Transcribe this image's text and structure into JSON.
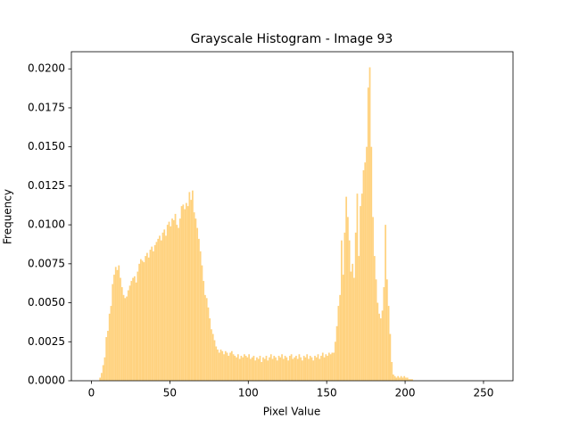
{
  "chart_data": {
    "type": "histogram",
    "title": "Grayscale Histogram - Image 93",
    "x_label": "Pixel Value",
    "y_label": "Frequency",
    "color": "#ffd27f",
    "bins": [
      0,
      1,
      2,
      3,
      4,
      5,
      6,
      7,
      8,
      9,
      10,
      11,
      12,
      13,
      14,
      15,
      16,
      17,
      18,
      19,
      20,
      21,
      22,
      23,
      24,
      25,
      26,
      27,
      28,
      29,
      30,
      31,
      32,
      33,
      34,
      35,
      36,
      37,
      38,
      39,
      40,
      41,
      42,
      43,
      44,
      45,
      46,
      47,
      48,
      49,
      50,
      51,
      52,
      53,
      54,
      55,
      56,
      57,
      58,
      59,
      60,
      61,
      62,
      63,
      64,
      65,
      66,
      67,
      68,
      69,
      70,
      71,
      72,
      73,
      74,
      75,
      76,
      77,
      78,
      79,
      80,
      81,
      82,
      83,
      84,
      85,
      86,
      87,
      88,
      89,
      90,
      91,
      92,
      93,
      94,
      95,
      96,
      97,
      98,
      99,
      100,
      101,
      102,
      103,
      104,
      105,
      106,
      107,
      108,
      109,
      110,
      111,
      112,
      113,
      114,
      115,
      116,
      117,
      118,
      119,
      120,
      121,
      122,
      123,
      124,
      125,
      126,
      127,
      128,
      129,
      130,
      131,
      132,
      133,
      134,
      135,
      136,
      137,
      138,
      139,
      140,
      141,
      142,
      143,
      144,
      145,
      146,
      147,
      148,
      149,
      150,
      151,
      152,
      153,
      154,
      155,
      156,
      157,
      158,
      159,
      160,
      161,
      162,
      163,
      164,
      165,
      166,
      167,
      168,
      169,
      170,
      171,
      172,
      173,
      174,
      175,
      176,
      177,
      178,
      179,
      180,
      181,
      182,
      183,
      184,
      185,
      186,
      187,
      188,
      189,
      190,
      191,
      192,
      193,
      194,
      195,
      196,
      197,
      198,
      199,
      200,
      201,
      202,
      203,
      204,
      205,
      206,
      207,
      208,
      209,
      210,
      211,
      212,
      213,
      214,
      215,
      216,
      217,
      218,
      219,
      220,
      221,
      222,
      223,
      224,
      225,
      226,
      227,
      228,
      229,
      230,
      231,
      232,
      233,
      234,
      235,
      236,
      237,
      238,
      239,
      240,
      241,
      242,
      243,
      244,
      245,
      246,
      247,
      248,
      249,
      250,
      251,
      252,
      253,
      254,
      255,
      256
    ],
    "values": [
      0,
      0,
      0,
      0,
      0,
      0.0002,
      0.0005,
      0.001,
      0.0015,
      0.0028,
      0.0032,
      0.0043,
      0.0048,
      0.0062,
      0.0068,
      0.0073,
      0.0071,
      0.0074,
      0.0066,
      0.006,
      0.0055,
      0.0053,
      0.0054,
      0.0058,
      0.0061,
      0.0064,
      0.0066,
      0.0067,
      0.0063,
      0.007,
      0.0075,
      0.0078,
      0.0077,
      0.0076,
      0.008,
      0.0082,
      0.0079,
      0.0084,
      0.0086,
      0.0083,
      0.0087,
      0.0089,
      0.0091,
      0.0093,
      0.009,
      0.0095,
      0.0097,
      0.0093,
      0.01,
      0.0102,
      0.0099,
      0.0104,
      0.0103,
      0.0107,
      0.01,
      0.0098,
      0.0104,
      0.0112,
      0.0113,
      0.011,
      0.0114,
      0.0112,
      0.0121,
      0.0116,
      0.0122,
      0.0108,
      0.0104,
      0.0098,
      0.0091,
      0.0083,
      0.0074,
      0.0064,
      0.0055,
      0.0053,
      0.0047,
      0.004,
      0.0033,
      0.003,
      0.0026,
      0.0022,
      0.002,
      0.0018,
      0.002,
      0.0019,
      0.0017,
      0.0019,
      0.0018,
      0.0016,
      0.0018,
      0.0019,
      0.0017,
      0.0016,
      0.0015,
      0.0017,
      0.0014,
      0.0016,
      0.0015,
      0.0017,
      0.0016,
      0.0015,
      0.0017,
      0.0014,
      0.0015,
      0.0016,
      0.0013,
      0.0015,
      0.0014,
      0.0016,
      0.0012,
      0.0015,
      0.0014,
      0.0016,
      0.0013,
      0.0015,
      0.0017,
      0.0014,
      0.0016,
      0.0015,
      0.0013,
      0.0016,
      0.0015,
      0.0017,
      0.0014,
      0.0016,
      0.0015,
      0.0013,
      0.0016,
      0.0017,
      0.0014,
      0.0015,
      0.0016,
      0.0014,
      0.0017,
      0.0015,
      0.0013,
      0.0016,
      0.0015,
      0.0017,
      0.0014,
      0.0016,
      0.0015,
      0.0013,
      0.0016,
      0.0015,
      0.0017,
      0.0014,
      0.0016,
      0.0018,
      0.0015,
      0.0017,
      0.0016,
      0.0018,
      0.0017,
      0.0018,
      0.0018,
      0.0025,
      0.0035,
      0.0048,
      0.0055,
      0.009,
      0.0068,
      0.0095,
      0.0118,
      0.0105,
      0.009,
      0.007,
      0.0075,
      0.0066,
      0.0095,
      0.012,
      0.008,
      0.0112,
      0.012,
      0.0135,
      0.014,
      0.015,
      0.0188,
      0.0201,
      0.015,
      0.0105,
      0.008,
      0.0065,
      0.005,
      0.0043,
      0.004,
      0.0045,
      0.006,
      0.01,
      0.0065,
      0.0048,
      0.003,
      0.0012,
      0.0004,
      0.0003,
      0.0002,
      0.0003,
      0.0002,
      0.0003,
      0.0002,
      0.0003,
      0.0002,
      0.0002,
      0.0001,
      0.0001,
      0.0001,
      0,
      0,
      0,
      0,
      0,
      0,
      0,
      0,
      0,
      0,
      0,
      0,
      0,
      0,
      0,
      0,
      0,
      0,
      0,
      0,
      0,
      0,
      0,
      0,
      0,
      0,
      0,
      0,
      0,
      0,
      0,
      0,
      0,
      0,
      0,
      0,
      0,
      0,
      0,
      0,
      0,
      0,
      0,
      0,
      0,
      0,
      0,
      0,
      0,
      0,
      0
    ],
    "xlim": [
      -12.8,
      268.8
    ],
    "ylim": [
      0,
      0.0211
    ],
    "xticks": [
      0,
      50,
      100,
      150,
      200,
      250
    ],
    "yticks": [
      {
        "value": 0,
        "label": "0.0000"
      },
      {
        "value": 0.0025,
        "label": "0.0025"
      },
      {
        "value": 0.005,
        "label": "0.0050"
      },
      {
        "value": 0.0075,
        "label": "0.0075"
      },
      {
        "value": 0.01,
        "label": "0.0100"
      },
      {
        "value": 0.0125,
        "label": "0.0125"
      },
      {
        "value": 0.015,
        "label": "0.0150"
      },
      {
        "value": 0.0175,
        "label": "0.0175"
      },
      {
        "value": 0.02,
        "label": "0.0200"
      }
    ],
    "grid": false
  }
}
